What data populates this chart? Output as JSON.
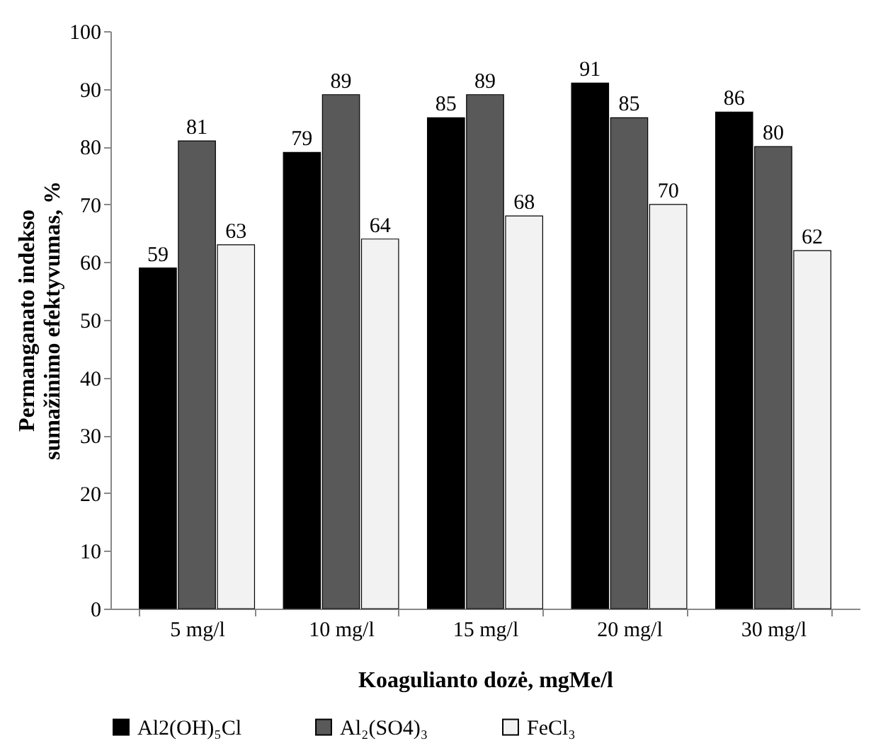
{
  "chart_data": {
    "type": "bar",
    "xlabel": "Koagulianto dozė, mgMe/l",
    "ylabel": "Permanganato indekso sumažinimo efektyvumas, %",
    "categories": [
      "5 mg/l",
      "10 mg/l",
      "15 mg/l",
      "20 mg/l",
      "30 mg/l"
    ],
    "series": [
      {
        "name": "Al2(OH)₅Cl",
        "color": "#000000",
        "values": [
          59,
          79,
          85,
          91,
          86
        ]
      },
      {
        "name": "Al₂(SO4)₃",
        "color": "#595959",
        "values": [
          81,
          89,
          89,
          85,
          80
        ]
      },
      {
        "name": "FeCl₃",
        "color": "#f2f2f2",
        "values": [
          63,
          64,
          68,
          70,
          62
        ]
      }
    ],
    "ylim": [
      0,
      100
    ],
    "yticks": [
      0,
      10,
      20,
      30,
      40,
      50,
      60,
      70,
      80,
      90,
      100
    ],
    "data_labels": true,
    "grid": false,
    "legend": "bottom"
  }
}
